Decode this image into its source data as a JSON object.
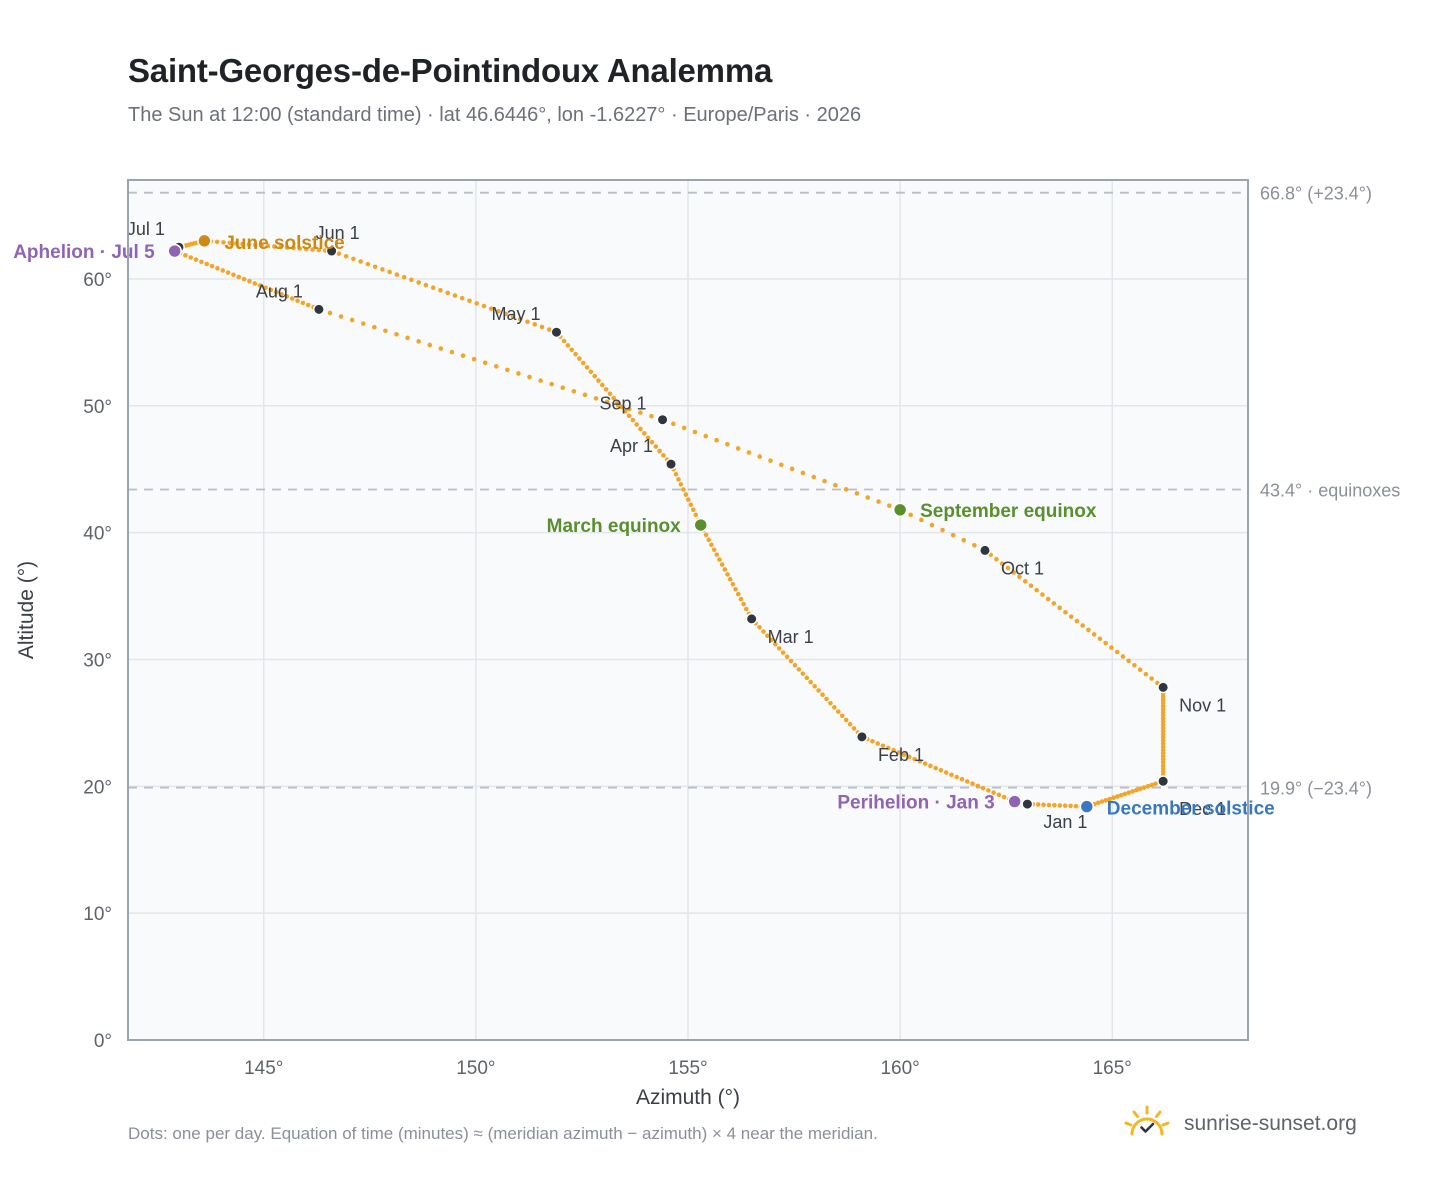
{
  "header": {
    "title": "Saint-Georges-de-Pointindoux Analemma",
    "subtitle": "The Sun at 12:00 (standard time) · lat 46.6446°, lon -1.6227° · Europe/Paris · 2026"
  },
  "footer": {
    "note": "Dots: one per day. Equation of time (minutes) ≈ (meridian azimuth − azimuth) × 4 near the meridian.",
    "brand": "sunrise-sunset.org",
    "brand_icon": "sun-logo-icon"
  },
  "colors": {
    "path": "#f2a52b",
    "month_marker": "#2f3640",
    "equinox": "#5a8f2e",
    "june_solstice": "#cc8a10",
    "december_solstice": "#3a78bd",
    "apsis": "#8f64b5",
    "reference_line": "#b8bfc8",
    "grid": "#e3e6ea",
    "plot_bg": "#f8fafc",
    "frame": "#9aa3ae"
  },
  "chart_data": {
    "type": "scatter",
    "xlabel": "Azimuth (°)",
    "ylabel": "Altitude (°)",
    "xlim": [
      141.8,
      168.2
    ],
    "ylim": [
      0,
      67.8
    ],
    "x_ticks": [
      145,
      150,
      155,
      160,
      165
    ],
    "y_ticks": [
      0,
      10,
      20,
      30,
      40,
      50,
      60
    ],
    "x_tick_labels": [
      "145°",
      "150°",
      "155°",
      "160°",
      "165°"
    ],
    "y_tick_labels": [
      "0°",
      "10°",
      "20°",
      "30°",
      "40°",
      "50°",
      "60°"
    ],
    "grid": true,
    "reference_lines": [
      {
        "y": 66.8,
        "label": "66.8° (+23.4°)"
      },
      {
        "y": 43.4,
        "label": "43.4° · equinoxes"
      },
      {
        "y": 19.9,
        "label": "19.9° (−23.4°)"
      }
    ],
    "month_points": [
      {
        "label": "Jan 1",
        "x": 163.0,
        "y": 18.6
      },
      {
        "label": "Feb 1",
        "x": 159.1,
        "y": 23.9
      },
      {
        "label": "Mar 1",
        "x": 156.5,
        "y": 33.2
      },
      {
        "label": "Apr 1",
        "x": 154.6,
        "y": 45.4
      },
      {
        "label": "May 1",
        "x": 151.9,
        "y": 55.8
      },
      {
        "label": "Jun 1",
        "x": 146.6,
        "y": 62.2
      },
      {
        "label": "Jul 1",
        "x": 143.0,
        "y": 62.5
      },
      {
        "label": "Aug 1",
        "x": 146.3,
        "y": 57.6
      },
      {
        "label": "Sep 1",
        "x": 154.4,
        "y": 48.9
      },
      {
        "label": "Oct 1",
        "x": 162.0,
        "y": 38.6
      },
      {
        "label": "Nov 1",
        "x": 166.2,
        "y": 27.8
      },
      {
        "label": "Dec 1",
        "x": 166.2,
        "y": 20.4
      }
    ],
    "events": [
      {
        "label": "June solstice",
        "x": 143.6,
        "y": 63.0,
        "color": "june_solstice"
      },
      {
        "label": "Aphelion · Jul 5",
        "x": 142.9,
        "y": 62.2,
        "color": "apsis"
      },
      {
        "label": "March equinox",
        "x": 155.3,
        "y": 40.6,
        "color": "equinox"
      },
      {
        "label": "September equinox",
        "x": 160.0,
        "y": 41.8,
        "color": "equinox"
      },
      {
        "label": "Perihelion · Jan 3",
        "x": 162.7,
        "y": 18.8,
        "color": "apsis"
      },
      {
        "label": "December solstice",
        "x": 164.4,
        "y": 18.4,
        "color": "december_solstice"
      }
    ]
  }
}
